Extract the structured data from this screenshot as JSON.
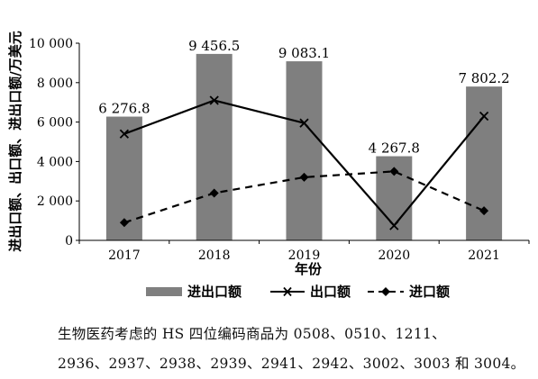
{
  "chart_data": {
    "type": "bar",
    "xlabel": "年份",
    "ylabel": "进出口额、出口额、进出口额/万美元",
    "categories": [
      "2017",
      "2018",
      "2019",
      "2020",
      "2021"
    ],
    "ylim": [
      0,
      10000
    ],
    "yticks": [
      0,
      2000,
      4000,
      6000,
      8000,
      10000
    ],
    "ytick_labels": [
      "0",
      "2 000",
      "4 000",
      "6 000",
      "8 000",
      "10 000"
    ],
    "grid": false,
    "legend_position": "bottom",
    "series": [
      {
        "name": "进出口额",
        "kind": "bar",
        "color": "#7f7f7f",
        "values": [
          6276.8,
          9456.5,
          9083.1,
          4267.8,
          7802.2
        ],
        "labels": [
          "6 276.8",
          "9 456.5",
          "9 083.1",
          "4 267.8",
          "7 802.2"
        ]
      },
      {
        "name": "出口额",
        "kind": "line",
        "style": "solid",
        "marker": "x",
        "color": "#000000",
        "values": [
          5400,
          7100,
          5950,
          750,
          6300
        ]
      },
      {
        "name": "进口额",
        "kind": "line",
        "style": "dashed",
        "marker": "diamond",
        "color": "#000000",
        "values": [
          900,
          2400,
          3200,
          3500,
          1500
        ]
      }
    ]
  },
  "notes": {
    "line1": "生物医药考虑的 HS 四位编码商品为 0508、0510、1211、",
    "line2": "2936、2937、2938、2939、2941、2942、3002、3003 和 3004。"
  }
}
